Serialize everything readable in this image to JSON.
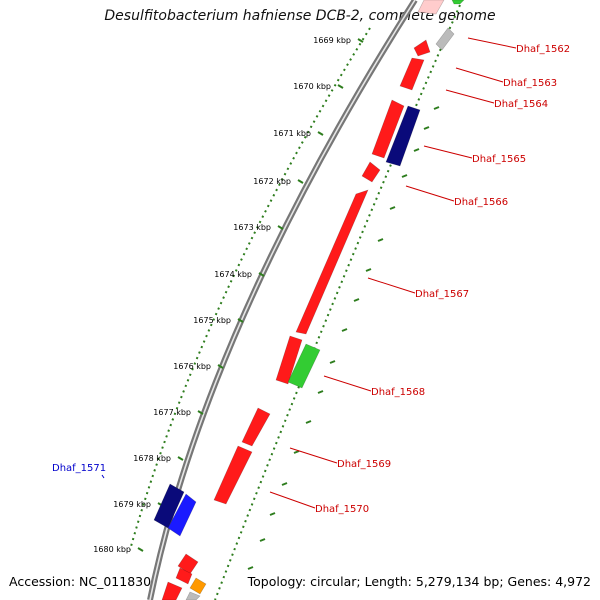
{
  "title": "Desulfitobacterium hafniense DCB-2, complete genome",
  "footer": {
    "accession": "Accession: NC_011830",
    "summary": "Topology: circular; Length: 5,279,134 bp; Genes: 4,972"
  },
  "ticks": [
    "1669 kbp",
    "1670 kbp",
    "1671 kbp",
    "1672 kbp",
    "1673 kbp",
    "1674 kbp",
    "1675 kbp",
    "1676 kbp",
    "1677 kbp",
    "1678 kbp",
    "1679 kbp",
    "1680 kbp"
  ],
  "colors": {
    "red": "#ff1a1a",
    "dark_blue": "#0a0a7a",
    "blue": "#1a1aff",
    "green": "#33cc33",
    "gray": "#bbbbbb",
    "orange": "#ff9900",
    "pink": "#ffcccc",
    "label_red": "#cc0000",
    "label_blue": "#0000cc",
    "tick_green": "#2e7d1e",
    "backbone": "#777777"
  },
  "genes": [
    {
      "label": "Dhaf_1562",
      "color": "label_red"
    },
    {
      "label": "Dhaf_1563",
      "color": "label_red"
    },
    {
      "label": "Dhaf_1564",
      "color": "label_red"
    },
    {
      "label": "Dhaf_1565",
      "color": "label_red"
    },
    {
      "label": "Dhaf_1566",
      "color": "label_red"
    },
    {
      "label": "Dhaf_1567",
      "color": "label_red"
    },
    {
      "label": "Dhaf_1568",
      "color": "label_red"
    },
    {
      "label": "Dhaf_1569",
      "color": "label_red"
    },
    {
      "label": "Dhaf_1570",
      "color": "label_red"
    },
    {
      "label": "Dhaf_1571",
      "color": "label_blue"
    }
  ]
}
